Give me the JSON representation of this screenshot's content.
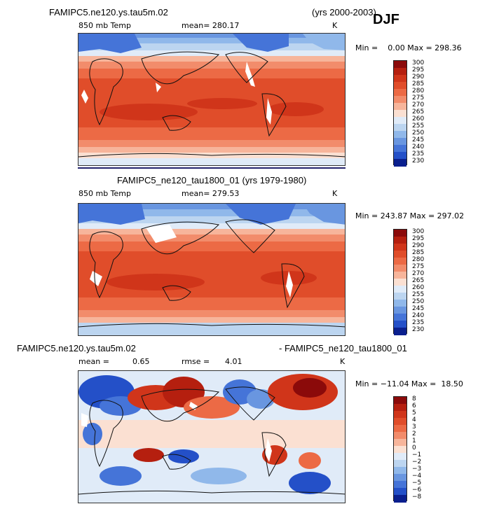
{
  "season": "DJF",
  "panels": [
    {
      "id": "top",
      "case_name": "FAMIPC5.ne120.ys.tau5m.02",
      "years": "(yrs 2000-2003)",
      "field": "850 mb Temp",
      "mean_text": "mean= 280.17",
      "units": "K",
      "minmax_text": "Min =    0.00 Max = 298.36",
      "colorbar_labels": [
        "300",
        "295",
        "290",
        "285",
        "280",
        "275",
        "270",
        "265",
        "260",
        "255",
        "250",
        "245",
        "240",
        "235",
        "230"
      ]
    },
    {
      "id": "middle",
      "case_title": "FAMIPC5_ne120_tau1800_01 (yrs 1979-1980)",
      "field": "850 mb Temp",
      "mean_text": "mean= 279.53",
      "units": "K",
      "minmax_text": "Min = 243.87 Max = 297.02",
      "colorbar_labels": [
        "300",
        "295",
        "290",
        "285",
        "280",
        "275",
        "270",
        "265",
        "260",
        "255",
        "250",
        "245",
        "240",
        "235",
        "230"
      ]
    },
    {
      "id": "bottom",
      "left_title": "FAMIPC5.ne120.ys.tau5m.02",
      "right_title": "- FAMIPC5_ne120_tau1800_01",
      "mean_label": "mean =",
      "mean_value": "0.65",
      "rmse_label": "rmse =",
      "rmse_value": "4.01",
      "units": "K",
      "minmax_text": "Min = −11.04 Max =  18.50",
      "colorbar_labels": [
        "8",
        "6",
        "5",
        "4",
        "3",
        "2",
        "1",
        "0",
        "−1",
        "−2",
        "−3",
        "−4",
        "−5",
        "−6",
        "−8"
      ]
    }
  ],
  "colors": {
    "temp_scale": [
      "#8b0a0a",
      "#b51f0f",
      "#d0351a",
      "#e04d2a",
      "#ec6a45",
      "#f28c6b",
      "#f7b59b",
      "#fbe0d2",
      "#e0ebf8",
      "#bcd5f0",
      "#90b8ea",
      "#6996e0",
      "#4574d8",
      "#2450c8",
      "#0a1f8e"
    ],
    "diff_scale": [
      "#8b0a0a",
      "#b51f0f",
      "#d0351a",
      "#e04d2a",
      "#ec6a45",
      "#f28c6b",
      "#f7b59b",
      "#fbe0d2",
      "#e0ebf8",
      "#bcd5f0",
      "#90b8ea",
      "#6996e0",
      "#4574d8",
      "#2450c8",
      "#0a1f8e"
    ]
  },
  "chart_data": [
    {
      "type": "heatmap",
      "title": "FAMIPC5.ne120.ys.tau5m.02 (yrs 2000-2003)",
      "variable": "850 mb Temp",
      "season": "DJF",
      "units": "K",
      "mean": 280.17,
      "min": 0.0,
      "max": 298.36,
      "contour_levels": [
        230,
        235,
        240,
        245,
        250,
        255,
        260,
        265,
        270,
        275,
        280,
        285,
        290,
        295,
        300
      ]
    },
    {
      "type": "heatmap",
      "title": "FAMIPC5_ne120_tau1800_01 (yrs 1979-1980)",
      "variable": "850 mb Temp",
      "units": "K",
      "mean": 279.53,
      "min": 243.87,
      "max": 297.02,
      "contour_levels": [
        230,
        235,
        240,
        245,
        250,
        255,
        260,
        265,
        270,
        275,
        280,
        285,
        290,
        295,
        300
      ]
    },
    {
      "type": "heatmap",
      "title": "FAMIPC5.ne120.ys.tau5m.02 - FAMIPC5_ne120_tau1800_01",
      "units": "K",
      "mean": 0.65,
      "rmse": 4.01,
      "min": -11.04,
      "max": 18.5,
      "contour_levels": [
        -8,
        -6,
        -5,
        -4,
        -3,
        -2,
        -1,
        0,
        1,
        2,
        3,
        4,
        5,
        6,
        8
      ]
    }
  ]
}
